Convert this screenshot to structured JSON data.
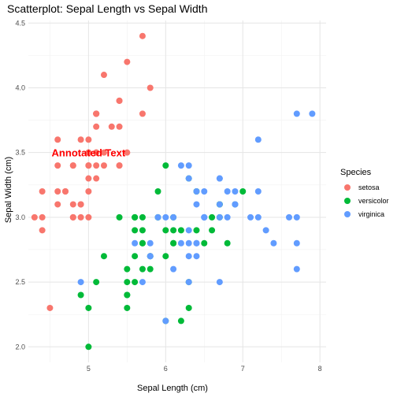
{
  "chart_data": {
    "type": "scatter",
    "title": "Scatterplot: Sepal Length vs Sepal Width",
    "xlabel": "Sepal Length (cm)",
    "ylabel": "Sepal Width (cm)",
    "xlim": [
      4.22,
      8.08
    ],
    "ylim": [
      1.88,
      4.52
    ],
    "x_ticks": [
      5,
      6,
      7,
      8
    ],
    "y_ticks": [
      2.0,
      2.5,
      3.0,
      3.5,
      4.0,
      4.5
    ],
    "x_tick_labels": [
      "5",
      "6",
      "7",
      "8"
    ],
    "y_tick_labels": [
      "2.0",
      "2.5",
      "3.0",
      "3.5",
      "4.0",
      "4.5"
    ],
    "grid": true,
    "legend": {
      "title": "Species",
      "position": "right"
    },
    "annotation": {
      "text": "Annotated Text",
      "x": 5.0,
      "y": 3.5,
      "color": "#ff0000"
    },
    "series": [
      {
        "name": "setosa",
        "color": "#f8766d",
        "points": [
          [
            5.1,
            3.5
          ],
          [
            4.9,
            3.0
          ],
          [
            4.7,
            3.2
          ],
          [
            4.6,
            3.1
          ],
          [
            5.0,
            3.6
          ],
          [
            5.4,
            3.9
          ],
          [
            4.6,
            3.4
          ],
          [
            5.0,
            3.4
          ],
          [
            4.4,
            2.9
          ],
          [
            4.9,
            3.1
          ],
          [
            5.4,
            3.7
          ],
          [
            4.8,
            3.4
          ],
          [
            4.8,
            3.0
          ],
          [
            4.3,
            3.0
          ],
          [
            5.8,
            4.0
          ],
          [
            5.7,
            4.4
          ],
          [
            5.4,
            3.9
          ],
          [
            5.1,
            3.5
          ],
          [
            5.7,
            3.8
          ],
          [
            5.1,
            3.8
          ],
          [
            5.4,
            3.4
          ],
          [
            5.1,
            3.7
          ],
          [
            4.6,
            3.6
          ],
          [
            5.1,
            3.3
          ],
          [
            4.8,
            3.4
          ],
          [
            5.0,
            3.0
          ],
          [
            5.0,
            3.4
          ],
          [
            5.2,
            3.5
          ],
          [
            5.2,
            3.4
          ],
          [
            4.7,
            3.2
          ],
          [
            4.8,
            3.1
          ],
          [
            5.4,
            3.4
          ],
          [
            5.2,
            4.1
          ],
          [
            5.5,
            4.2
          ],
          [
            4.9,
            3.1
          ],
          [
            5.0,
            3.2
          ],
          [
            5.5,
            3.5
          ],
          [
            4.9,
            3.6
          ],
          [
            4.4,
            3.0
          ],
          [
            5.1,
            3.4
          ],
          [
            5.0,
            3.5
          ],
          [
            4.5,
            2.3
          ],
          [
            4.4,
            3.2
          ],
          [
            5.0,
            3.5
          ],
          [
            5.1,
            3.8
          ],
          [
            4.8,
            3.0
          ],
          [
            5.1,
            3.8
          ],
          [
            4.6,
            3.2
          ],
          [
            5.3,
            3.7
          ],
          [
            5.0,
            3.3
          ]
        ]
      },
      {
        "name": "versicolor",
        "color": "#00ba38",
        "points": [
          [
            7.0,
            3.2
          ],
          [
            6.4,
            3.2
          ],
          [
            6.9,
            3.1
          ],
          [
            5.5,
            2.3
          ],
          [
            6.5,
            2.8
          ],
          [
            5.7,
            2.8
          ],
          [
            6.3,
            3.3
          ],
          [
            4.9,
            2.4
          ],
          [
            6.6,
            2.9
          ],
          [
            5.2,
            2.7
          ],
          [
            5.0,
            2.0
          ],
          [
            5.9,
            3.0
          ],
          [
            6.0,
            2.2
          ],
          [
            6.1,
            2.9
          ],
          [
            5.6,
            2.9
          ],
          [
            6.7,
            3.1
          ],
          [
            5.6,
            3.0
          ],
          [
            5.8,
            2.7
          ],
          [
            6.2,
            2.2
          ],
          [
            5.6,
            2.5
          ],
          [
            5.9,
            3.2
          ],
          [
            6.1,
            2.8
          ],
          [
            6.3,
            2.5
          ],
          [
            6.1,
            2.8
          ],
          [
            6.4,
            2.9
          ],
          [
            6.6,
            3.0
          ],
          [
            6.8,
            2.8
          ],
          [
            6.7,
            3.0
          ],
          [
            6.0,
            2.9
          ],
          [
            5.7,
            2.6
          ],
          [
            5.5,
            2.4
          ],
          [
            5.5,
            2.4
          ],
          [
            5.8,
            2.7
          ],
          [
            6.0,
            2.7
          ],
          [
            5.4,
            3.0
          ],
          [
            6.0,
            3.4
          ],
          [
            6.7,
            3.1
          ],
          [
            6.3,
            2.3
          ],
          [
            5.6,
            3.0
          ],
          [
            5.5,
            2.5
          ],
          [
            5.5,
            2.6
          ],
          [
            6.1,
            3.0
          ],
          [
            5.8,
            2.6
          ],
          [
            5.0,
            2.3
          ],
          [
            5.6,
            2.7
          ],
          [
            5.7,
            3.0
          ],
          [
            5.7,
            2.9
          ],
          [
            6.2,
            2.9
          ],
          [
            5.1,
            2.5
          ],
          [
            5.7,
            2.8
          ]
        ]
      },
      {
        "name": "virginica",
        "color": "#619cff",
        "points": [
          [
            6.3,
            3.3
          ],
          [
            5.8,
            2.7
          ],
          [
            7.1,
            3.0
          ],
          [
            6.3,
            2.9
          ],
          [
            6.5,
            3.0
          ],
          [
            7.6,
            3.0
          ],
          [
            4.9,
            2.5
          ],
          [
            7.3,
            2.9
          ],
          [
            6.7,
            2.5
          ],
          [
            7.2,
            3.6
          ],
          [
            6.5,
            3.2
          ],
          [
            6.4,
            2.7
          ],
          [
            6.8,
            3.0
          ],
          [
            5.7,
            2.5
          ],
          [
            5.8,
            2.8
          ],
          [
            6.4,
            3.2
          ],
          [
            6.5,
            3.0
          ],
          [
            7.7,
            3.8
          ],
          [
            7.7,
            2.6
          ],
          [
            6.0,
            2.2
          ],
          [
            6.9,
            3.2
          ],
          [
            5.6,
            2.8
          ],
          [
            7.7,
            2.8
          ],
          [
            6.3,
            2.7
          ],
          [
            6.7,
            3.3
          ],
          [
            7.2,
            3.2
          ],
          [
            6.2,
            2.8
          ],
          [
            6.1,
            3.0
          ],
          [
            6.4,
            2.8
          ],
          [
            7.2,
            3.0
          ],
          [
            7.4,
            2.8
          ],
          [
            7.9,
            3.8
          ],
          [
            6.4,
            2.8
          ],
          [
            6.3,
            2.8
          ],
          [
            6.1,
            2.6
          ],
          [
            7.7,
            3.0
          ],
          [
            6.3,
            3.4
          ],
          [
            6.4,
            3.1
          ],
          [
            6.0,
            3.0
          ],
          [
            6.9,
            3.1
          ],
          [
            6.7,
            3.1
          ],
          [
            6.9,
            3.1
          ],
          [
            5.8,
            2.7
          ],
          [
            6.8,
            3.2
          ],
          [
            6.7,
            3.3
          ],
          [
            6.7,
            3.0
          ],
          [
            6.3,
            2.5
          ],
          [
            6.5,
            3.0
          ],
          [
            6.2,
            3.4
          ],
          [
            5.9,
            3.0
          ]
        ]
      }
    ]
  }
}
